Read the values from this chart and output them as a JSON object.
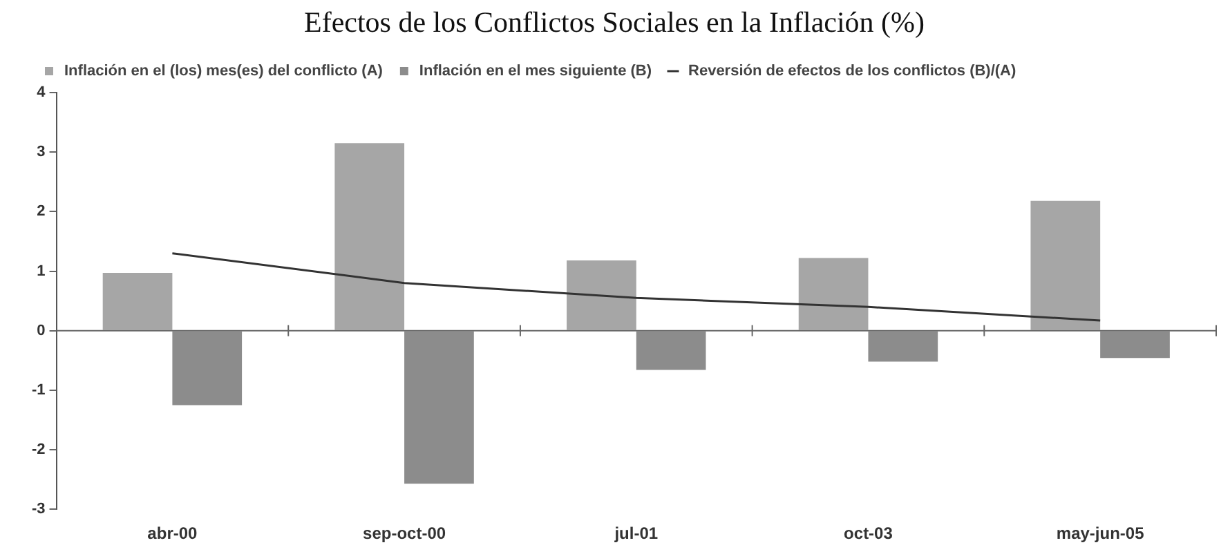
{
  "chart_data": {
    "type": "bar",
    "title": "Efectos de los Conflictos Sociales en la Inflación (%)",
    "categories": [
      "abr-00",
      "sep-oct-00",
      "jul-01",
      "oct-03",
      "may-jun-05"
    ],
    "series": [
      {
        "name": "Inflación en el (los) mes(es) del conflicto (A)",
        "color": "#a6a6a6",
        "values": [
          0.97,
          3.15,
          1.18,
          1.22,
          2.18
        ]
      },
      {
        "name": "Inflación en el mes siguiente (B)",
        "color": "#8c8c8c",
        "values": [
          -1.25,
          -2.57,
          -0.66,
          -0.52,
          -0.46
        ]
      },
      {
        "name": "Reversión de efectos de los conflictos (B)/(A)",
        "type": "line",
        "color": "#333333",
        "values": [
          1.3,
          0.8,
          0.55,
          0.4,
          0.17
        ]
      }
    ],
    "ref_lines": [
      {
        "axis": "y",
        "value": 0,
        "color": "#666666"
      }
    ],
    "ylim": [
      -3,
      4
    ],
    "yticks": [
      -3,
      -2,
      -1,
      0,
      1,
      2,
      3,
      4
    ],
    "grid": false,
    "legend": "top left",
    "marker": "none",
    "line_style": "solid"
  }
}
